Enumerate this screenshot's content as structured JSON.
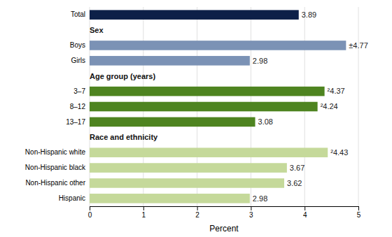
{
  "chart_data": {
    "type": "bar",
    "orientation": "horizontal",
    "categories": [
      "Hispanic",
      "Non-Hispanic other",
      "Non-Hispanic black",
      "Non-Hispanic white",
      "13–17",
      "8–12",
      "3–7",
      "Girls",
      "Boys",
      "Total"
    ],
    "values": [
      2.98,
      3.62,
      3.67,
      4.43,
      3.08,
      4.24,
      4.37,
      2.98,
      4.77,
      3.89
    ],
    "value_labels": [
      "2.98",
      "3.62",
      "3.67",
      "²4.43",
      "3.08",
      "²4.24",
      "²4.37",
      "2.98",
      "±4.77",
      "3.89"
    ],
    "data_labels": true,
    "colors": [
      "#c5d99a",
      "#c5d99a",
      "#c5d99a",
      "#c5d99a",
      "#4e8420",
      "#4e8420",
      "#4e8420",
      "#7b92b5",
      "#7b92b5",
      "#0d2048"
    ],
    "annotations": [
      "Sex",
      "Age group (years)",
      "Race and ethnicity"
    ],
    "xlabel": "Percent",
    "xlim": [
      0,
      5
    ],
    "xticks": [
      0,
      1,
      2,
      3,
      4,
      5
    ],
    "grid": true
  }
}
